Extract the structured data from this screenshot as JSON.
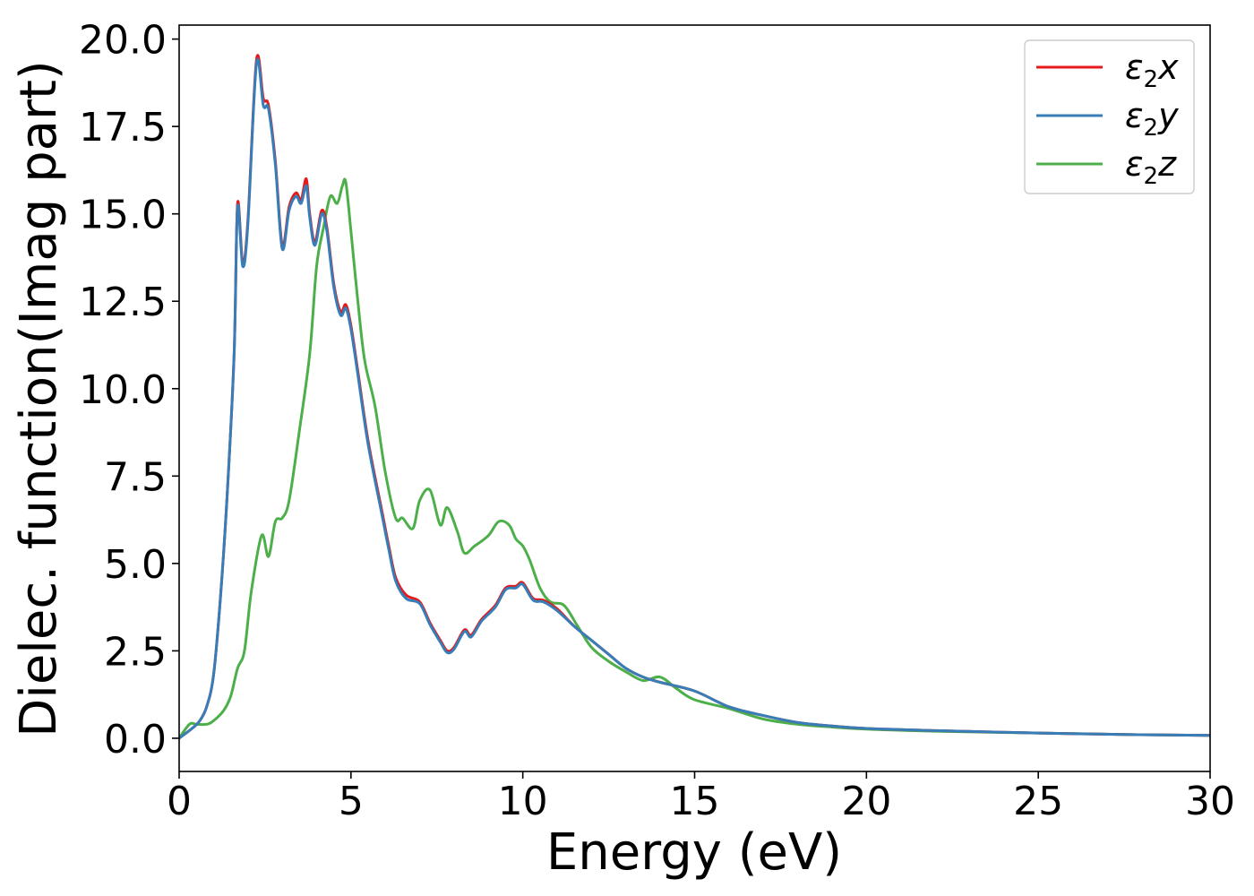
{
  "chart_data": {
    "type": "line",
    "xlabel": "Energy (eV)",
    "ylabel": "Dielec. function(Imag part)",
    "xlim": [
      0,
      30
    ],
    "ylim": [
      -0.95,
      20.4
    ],
    "xticks": [
      0,
      5,
      10,
      15,
      20,
      25,
      30
    ],
    "xtick_labels": [
      "0",
      "5",
      "10",
      "15",
      "20",
      "25",
      "30"
    ],
    "yticks": [
      0,
      2.5,
      5,
      7.5,
      10,
      12.5,
      15,
      17.5,
      20
    ],
    "ytick_labels": [
      "0.0",
      "2.5",
      "5.0",
      "7.5",
      "10.0",
      "12.5",
      "15.0",
      "17.5",
      "20.0"
    ],
    "grid": false,
    "legend_position": "top-right",
    "series": [
      {
        "name": "ε₂x",
        "legend_base": "ε",
        "legend_sub": "2",
        "legend_suffix": "x",
        "color": "#e41a1c",
        "x": [
          0,
          0.4,
          0.6,
          0.8,
          1.0,
          1.2,
          1.4,
          1.6,
          1.7,
          1.85,
          2.0,
          2.25,
          2.45,
          2.6,
          2.8,
          3.0,
          3.2,
          3.4,
          3.55,
          3.7,
          3.8,
          3.95,
          4.15,
          4.3,
          4.5,
          4.7,
          4.85,
          5.0,
          5.2,
          5.5,
          5.9,
          6.1,
          6.3,
          6.6,
          7.0,
          7.3,
          7.6,
          7.8,
          8.0,
          8.3,
          8.5,
          8.8,
          9.2,
          9.5,
          9.8,
          10.0,
          10.3,
          10.6,
          11.0,
          11.5,
          12.0,
          12.5,
          13.0,
          13.5,
          14.0,
          15.0,
          16.0,
          17.0,
          18.0,
          19.0,
          20.0,
          22.0,
          25.0,
          28.0,
          30.0
        ],
        "y": [
          0,
          0.3,
          0.5,
          0.9,
          1.8,
          4.0,
          7.0,
          11.0,
          15.3,
          13.6,
          14.8,
          19.4,
          18.3,
          18.1,
          16.5,
          14.1,
          15.2,
          15.6,
          15.4,
          16.0,
          15.0,
          14.2,
          15.1,
          14.6,
          13.0,
          12.2,
          12.4,
          11.8,
          10.5,
          8.5,
          6.5,
          5.5,
          4.6,
          4.1,
          3.9,
          3.3,
          2.8,
          2.5,
          2.6,
          3.1,
          2.95,
          3.4,
          3.8,
          4.3,
          4.35,
          4.45,
          4.0,
          3.95,
          3.7,
          3.2,
          2.8,
          2.4,
          2.0,
          1.75,
          1.6,
          1.35,
          0.9,
          0.65,
          0.45,
          0.35,
          0.28,
          0.22,
          0.15,
          0.1,
          0.08
        ]
      },
      {
        "name": "ε₂y",
        "legend_base": "ε",
        "legend_sub": "2",
        "legend_suffix": "y",
        "color": "#377eb8",
        "x": [
          0,
          0.4,
          0.6,
          0.8,
          1.0,
          1.2,
          1.4,
          1.6,
          1.7,
          1.85,
          2.0,
          2.25,
          2.45,
          2.6,
          2.8,
          3.0,
          3.2,
          3.4,
          3.55,
          3.7,
          3.8,
          3.95,
          4.15,
          4.3,
          4.5,
          4.7,
          4.85,
          5.0,
          5.2,
          5.5,
          5.9,
          6.1,
          6.3,
          6.6,
          7.0,
          7.3,
          7.6,
          7.8,
          8.0,
          8.3,
          8.5,
          8.8,
          9.2,
          9.5,
          9.8,
          10.0,
          10.3,
          10.6,
          11.0,
          11.5,
          12.0,
          12.5,
          13.0,
          13.5,
          14.0,
          15.0,
          16.0,
          17.0,
          18.0,
          19.0,
          20.0,
          22.0,
          25.0,
          28.0,
          30.0
        ],
        "y": [
          0,
          0.3,
          0.5,
          0.9,
          1.8,
          4.0,
          7.0,
          11.0,
          15.2,
          13.5,
          14.7,
          19.3,
          18.1,
          18.0,
          16.4,
          14.0,
          15.1,
          15.5,
          15.3,
          15.8,
          14.9,
          14.1,
          15.0,
          14.5,
          12.9,
          12.1,
          12.3,
          11.7,
          10.4,
          8.4,
          6.4,
          5.4,
          4.5,
          4.0,
          3.85,
          3.25,
          2.75,
          2.45,
          2.55,
          3.05,
          2.9,
          3.35,
          3.75,
          4.25,
          4.3,
          4.4,
          3.95,
          3.9,
          3.65,
          3.2,
          2.8,
          2.4,
          2.0,
          1.75,
          1.6,
          1.35,
          0.9,
          0.65,
          0.45,
          0.35,
          0.28,
          0.22,
          0.15,
          0.1,
          0.08
        ]
      },
      {
        "name": "ε₂z",
        "legend_base": "ε",
        "legend_sub": "2",
        "legend_suffix": "z",
        "color": "#4daf4a",
        "x": [
          0,
          0.3,
          0.5,
          0.8,
          1.0,
          1.3,
          1.5,
          1.7,
          1.9,
          2.1,
          2.4,
          2.6,
          2.8,
          3.0,
          3.2,
          3.5,
          3.8,
          4.0,
          4.2,
          4.4,
          4.6,
          4.75,
          4.85,
          5.0,
          5.2,
          5.4,
          5.7,
          6.0,
          6.3,
          6.5,
          6.8,
          7.0,
          7.3,
          7.6,
          7.8,
          8.1,
          8.3,
          8.6,
          9.0,
          9.3,
          9.6,
          9.8,
          10.0,
          10.2,
          10.5,
          10.8,
          11.2,
          11.6,
          12.0,
          12.5,
          13.0,
          13.5,
          14.0,
          14.5,
          15.0,
          16.0,
          17.0,
          18.0,
          19.0,
          20.0,
          22.0,
          25.0,
          28.0,
          30.0
        ],
        "y": [
          0,
          0.4,
          0.4,
          0.4,
          0.5,
          0.8,
          1.2,
          2.0,
          2.5,
          4.2,
          5.8,
          5.2,
          6.2,
          6.3,
          6.8,
          8.8,
          11.0,
          13.5,
          14.6,
          15.5,
          15.3,
          15.8,
          15.9,
          14.5,
          12.5,
          10.8,
          9.5,
          7.6,
          6.3,
          6.3,
          6.0,
          6.8,
          7.1,
          6.1,
          6.6,
          5.9,
          5.3,
          5.5,
          5.8,
          6.2,
          6.1,
          5.7,
          5.5,
          5.1,
          4.3,
          3.9,
          3.8,
          3.2,
          2.6,
          2.2,
          1.9,
          1.65,
          1.75,
          1.4,
          1.1,
          0.85,
          0.55,
          0.4,
          0.32,
          0.26,
          0.2,
          0.15,
          0.1,
          0.08
        ]
      }
    ]
  }
}
